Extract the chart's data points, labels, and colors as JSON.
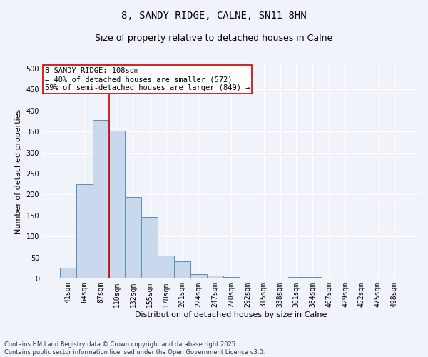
{
  "title1": "8, SANDY RIDGE, CALNE, SN11 8HN",
  "title2": "Size of property relative to detached houses in Calne",
  "xlabel": "Distribution of detached houses by size in Calne",
  "ylabel": "Number of detached properties",
  "categories": [
    "41sqm",
    "64sqm",
    "87sqm",
    "110sqm",
    "132sqm",
    "155sqm",
    "178sqm",
    "201sqm",
    "224sqm",
    "247sqm",
    "270sqm",
    "292sqm",
    "315sqm",
    "338sqm",
    "361sqm",
    "384sqm",
    "407sqm",
    "429sqm",
    "452sqm",
    "475sqm",
    "498sqm"
  ],
  "values": [
    25,
    225,
    378,
    352,
    193,
    147,
    55,
    40,
    10,
    6,
    4,
    0,
    0,
    0,
    3,
    3,
    0,
    0,
    0,
    2,
    0
  ],
  "bar_color": "#c9d9ed",
  "bar_edge_color": "#5b8db8",
  "bar_edge_width": 0.7,
  "vline_x": 2.5,
  "vline_color": "#cc0000",
  "annotation_text": "8 SANDY RIDGE: 108sqm\n← 40% of detached houses are smaller (572)\n59% of semi-detached houses are larger (849) →",
  "annotation_box_color": "#ffffff",
  "annotation_box_edge": "#cc0000",
  "ylim": [
    0,
    510
  ],
  "yticks": [
    0,
    50,
    100,
    150,
    200,
    250,
    300,
    350,
    400,
    450,
    500
  ],
  "footer": "Contains HM Land Registry data © Crown copyright and database right 2025.\nContains public sector information licensed under the Open Government Licence v3.0.",
  "bg_color": "#f0f4fa",
  "grid_color": "#ffffff",
  "title1_fontsize": 10,
  "title2_fontsize": 9,
  "axis_label_fontsize": 8,
  "tick_fontsize": 7,
  "annotation_fontsize": 7.5,
  "footer_fontsize": 6
}
